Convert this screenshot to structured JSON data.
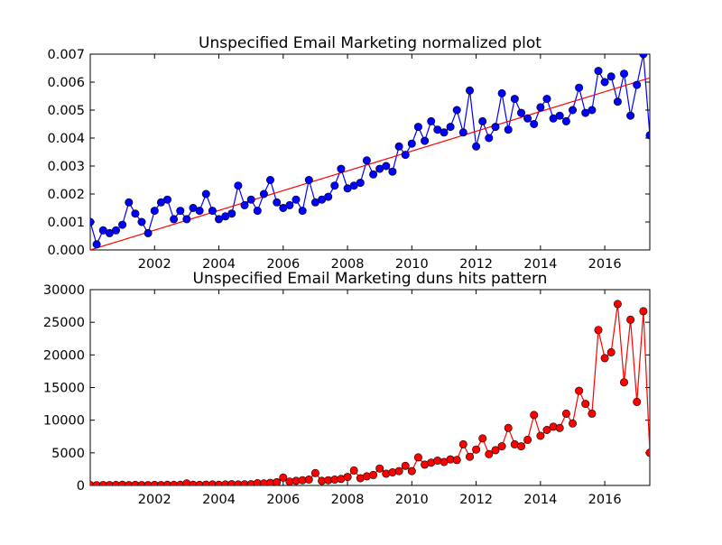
{
  "chart_data": [
    {
      "type": "scatter",
      "title": "Unspecified Email Marketing normalized plot",
      "xlabel": "",
      "ylabel": "",
      "xlim": [
        2000.0,
        2017.4
      ],
      "ylim": [
        0,
        0.007
      ],
      "x_ticks": [
        2002,
        2004,
        2006,
        2008,
        2010,
        2012,
        2014,
        2016
      ],
      "x_tick_labels": [
        "2002",
        "2004",
        "2006",
        "2008",
        "2010",
        "2012",
        "2014",
        "2016"
      ],
      "y_ticks": [
        0,
        0.001,
        0.002,
        0.003,
        0.004,
        0.005,
        0.006,
        0.007
      ],
      "y_tick_labels": [
        "0.000",
        "0.001",
        "0.002",
        "0.003",
        "0.004",
        "0.005",
        "0.006",
        "0.007"
      ],
      "grid": false,
      "colors": {
        "marker": "#0000ff",
        "line": "#0000ff",
        "trend": "#ff0000"
      },
      "series": [
        {
          "style": "line-with-markers",
          "x": [
            2000.0,
            2000.2,
            2000.4,
            2000.6,
            2000.8,
            2001.0,
            2001.2,
            2001.4,
            2001.6,
            2001.8,
            2002.0,
            2002.2,
            2002.4,
            2002.6,
            2002.8,
            2003.0,
            2003.2,
            2003.4,
            2003.6,
            2003.8,
            2004.0,
            2004.2,
            2004.4,
            2004.6,
            2004.8,
            2005.0,
            2005.2,
            2005.4,
            2005.6,
            2005.8,
            2006.0,
            2006.2,
            2006.4,
            2006.6,
            2006.8,
            2007.0,
            2007.2,
            2007.4,
            2007.6,
            2007.8,
            2008.0,
            2008.2,
            2008.4,
            2008.6,
            2008.8,
            2009.0,
            2009.2,
            2009.4,
            2009.6,
            2009.8,
            2010.0,
            2010.2,
            2010.4,
            2010.6,
            2010.8,
            2011.0,
            2011.2,
            2011.4,
            2011.6,
            2011.8,
            2012.0,
            2012.2,
            2012.4,
            2012.6,
            2012.8,
            2013.0,
            2013.2,
            2013.4,
            2013.6,
            2013.8,
            2014.0,
            2014.2,
            2014.4,
            2014.6,
            2014.8,
            2015.0,
            2015.2,
            2015.4,
            2015.6,
            2015.8,
            2016.0,
            2016.2,
            2016.4,
            2016.6,
            2016.8,
            2017.0,
            2017.2,
            2017.4
          ],
          "y": [
            0.001,
            0.0002,
            0.0007,
            0.0006,
            0.0007,
            0.0009,
            0.0017,
            0.0013,
            0.001,
            0.0006,
            0.0014,
            0.0017,
            0.0018,
            0.0011,
            0.0014,
            0.0011,
            0.0015,
            0.0014,
            0.002,
            0.0014,
            0.0011,
            0.0012,
            0.0013,
            0.0023,
            0.0016,
            0.0018,
            0.0014,
            0.002,
            0.0025,
            0.0017,
            0.0015,
            0.0016,
            0.0018,
            0.0014,
            0.0025,
            0.0017,
            0.0018,
            0.0019,
            0.0023,
            0.0029,
            0.0022,
            0.0023,
            0.0024,
            0.0032,
            0.0027,
            0.0029,
            0.003,
            0.0028,
            0.0037,
            0.0034,
            0.0038,
            0.0044,
            0.0039,
            0.0046,
            0.0043,
            0.0042,
            0.0044,
            0.005,
            0.0042,
            0.0057,
            0.0037,
            0.0046,
            0.004,
            0.0044,
            0.0056,
            0.0043,
            0.0054,
            0.0049,
            0.0047,
            0.0045,
            0.0051,
            0.0054,
            0.0047,
            0.0048,
            0.0046,
            0.005,
            0.0058,
            0.0049,
            0.005,
            0.0064,
            0.006,
            0.0062,
            0.0053,
            0.0063,
            0.0048,
            0.0059,
            0.007,
            0.0041
          ]
        },
        {
          "style": "trend-line",
          "x": [
            2000.0,
            2017.4
          ],
          "y": [
            0.0,
            0.00615
          ]
        }
      ]
    },
    {
      "type": "scatter",
      "title": "Unspecified Email Marketing duns hits pattern",
      "xlabel": "",
      "ylabel": "",
      "xlim": [
        2000.0,
        2017.4
      ],
      "ylim": [
        0,
        30000
      ],
      "x_ticks": [
        2002,
        2004,
        2006,
        2008,
        2010,
        2012,
        2014,
        2016
      ],
      "x_tick_labels": [
        "2002",
        "2004",
        "2006",
        "2008",
        "2010",
        "2012",
        "2014",
        "2016"
      ],
      "y_ticks": [
        0,
        5000,
        10000,
        15000,
        20000,
        25000,
        30000
      ],
      "y_tick_labels": [
        "0",
        "5000",
        "10000",
        "15000",
        "20000",
        "25000",
        "30000"
      ],
      "grid": false,
      "colors": {
        "marker": "#ff0000",
        "line": "#ff0000"
      },
      "series": [
        {
          "style": "line-with-markers",
          "x": [
            2000.0,
            2000.2,
            2000.4,
            2000.6,
            2000.8,
            2001.0,
            2001.2,
            2001.4,
            2001.6,
            2001.8,
            2002.0,
            2002.2,
            2002.4,
            2002.6,
            2002.8,
            2003.0,
            2003.2,
            2003.4,
            2003.6,
            2003.8,
            2004.0,
            2004.2,
            2004.4,
            2004.6,
            2004.8,
            2005.0,
            2005.2,
            2005.4,
            2005.6,
            2005.8,
            2006.0,
            2006.2,
            2006.4,
            2006.6,
            2006.8,
            2007.0,
            2007.2,
            2007.4,
            2007.6,
            2007.8,
            2008.0,
            2008.2,
            2008.4,
            2008.6,
            2008.8,
            2009.0,
            2009.2,
            2009.4,
            2009.6,
            2009.8,
            2010.0,
            2010.2,
            2010.4,
            2010.6,
            2010.8,
            2011.0,
            2011.2,
            2011.4,
            2011.6,
            2011.8,
            2012.0,
            2012.2,
            2012.4,
            2012.6,
            2012.8,
            2013.0,
            2013.2,
            2013.4,
            2013.6,
            2013.8,
            2014.0,
            2014.2,
            2014.4,
            2014.6,
            2014.8,
            2015.0,
            2015.2,
            2015.4,
            2015.6,
            2015.8,
            2016.0,
            2016.2,
            2016.4,
            2016.6,
            2016.8,
            2017.0,
            2017.2,
            2017.4
          ],
          "y": [
            50,
            40,
            50,
            60,
            70,
            100,
            60,
            80,
            60,
            50,
            80,
            60,
            90,
            80,
            100,
            300,
            100,
            80,
            120,
            150,
            100,
            150,
            200,
            150,
            180,
            200,
            350,
            300,
            400,
            500,
            1200,
            600,
            700,
            800,
            900,
            1900,
            700,
            800,
            900,
            1000,
            1300,
            2300,
            1100,
            1400,
            1600,
            2600,
            1800,
            2000,
            2200,
            3000,
            2200,
            4300,
            3200,
            3500,
            3800,
            3600,
            4000,
            3900,
            6300,
            4400,
            5500,
            7200,
            4800,
            5400,
            6000,
            8800,
            6300,
            6000,
            7000,
            10800,
            7600,
            8500,
            9000,
            8800,
            11000,
            9500,
            14500,
            12500,
            11000,
            23800,
            19500,
            20400,
            27800,
            15800,
            25400,
            12800,
            26700,
            5000
          ]
        }
      ]
    }
  ]
}
